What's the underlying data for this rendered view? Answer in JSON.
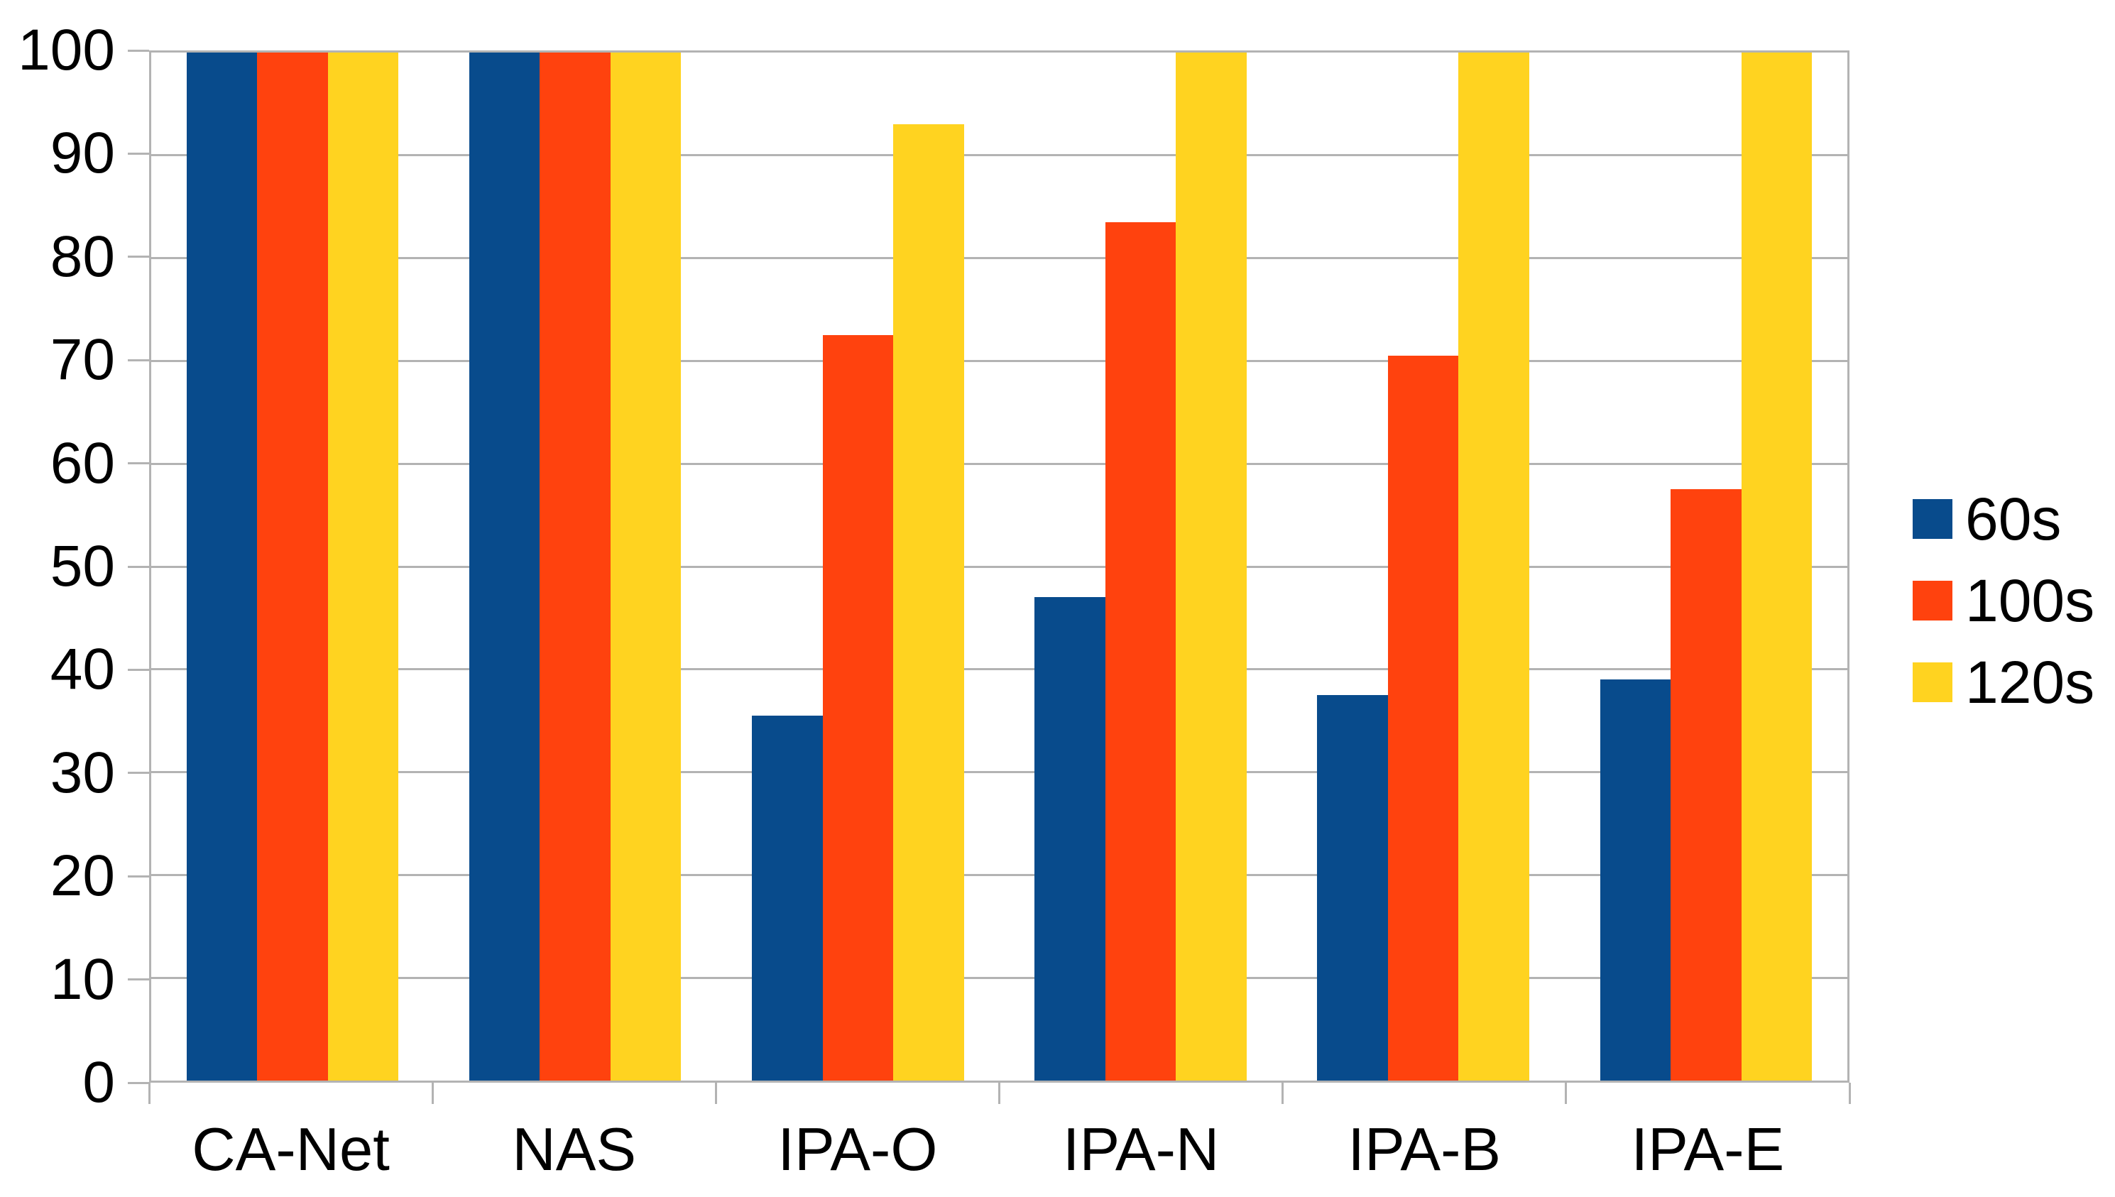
{
  "chart_data": {
    "type": "bar",
    "title": "",
    "xlabel": "",
    "ylabel": "",
    "categories": [
      "CA-Net",
      "NAS",
      "IPA-O",
      "IPA-N",
      "IPA-B",
      "IPA-E"
    ],
    "series": [
      {
        "name": "60s",
        "color": "#084B8C",
        "values": [
          100,
          100,
          35.5,
          47,
          37.5,
          39
        ]
      },
      {
        "name": "100s",
        "color": "#FF420E",
        "values": [
          100,
          100,
          72.5,
          83.5,
          70.5,
          57.5
        ]
      },
      {
        "name": "120s",
        "color": "#FFD320",
        "values": [
          100,
          100,
          93,
          100,
          100,
          100
        ]
      }
    ],
    "ylim": [
      0,
      100
    ],
    "yticks": [
      0,
      10,
      20,
      30,
      40,
      50,
      60,
      70,
      80,
      90,
      100
    ],
    "grid": true,
    "legend_position": "right"
  },
  "styles": {
    "grid_color": "#b3b3b3",
    "axis_color": "#b3b3b3",
    "text_color": "#000000",
    "background": "#ffffff"
  }
}
